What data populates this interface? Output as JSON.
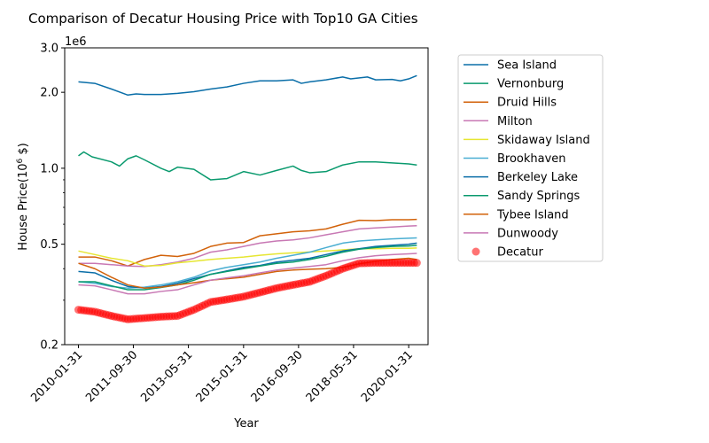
{
  "chart_data": {
    "type": "line",
    "title": "Comparison of Decatur Housing Price with Top10 GA Cities",
    "xlabel": "Year",
    "ylabel": "House Price(10",
    "ylabel_sup": "6",
    "ylabel_suffix": " $)",
    "y_offset_label": "1e6",
    "yscale": "log",
    "ylim": [
      0.2,
      3.0
    ],
    "xlim": [
      "2009-09-01",
      "2020-09-01"
    ],
    "yticks": [
      {
        "value": 0.2,
        "label": "0.2"
      },
      {
        "value": 0.5,
        "label": "0.5"
      },
      {
        "value": 1.0,
        "label": "1.0"
      },
      {
        "value": 2.0,
        "label": "2.0"
      },
      {
        "value": 3.0,
        "label": "3.0"
      }
    ],
    "xticks": [
      {
        "date": "2010-01-31",
        "label": "2010-01-31"
      },
      {
        "date": "2011-09-30",
        "label": "2011-09-30"
      },
      {
        "date": "2013-05-31",
        "label": "2013-05-31"
      },
      {
        "date": "2015-01-31",
        "label": "2015-01-31"
      },
      {
        "date": "2016-09-30",
        "label": "2016-09-30"
      },
      {
        "date": "2018-05-31",
        "label": "2018-05-31"
      },
      {
        "date": "2020-01-31",
        "label": "2020-01-31"
      }
    ],
    "grid": false,
    "legend_position": "outside-right",
    "series": [
      {
        "name": "Sea Island",
        "color": "#0a6ea8",
        "points": [
          [
            "2010-01-31",
            2.2
          ],
          [
            "2010-07-31",
            2.17
          ],
          [
            "2011-01-31",
            2.06
          ],
          [
            "2011-07-31",
            1.95
          ],
          [
            "2011-10-31",
            1.97
          ],
          [
            "2012-01-31",
            1.96
          ],
          [
            "2012-07-31",
            1.96
          ],
          [
            "2013-01-31",
            1.98
          ],
          [
            "2013-07-31",
            2.01
          ],
          [
            "2014-01-31",
            2.06
          ],
          [
            "2014-07-31",
            2.1
          ],
          [
            "2015-01-31",
            2.17
          ],
          [
            "2015-07-31",
            2.22
          ],
          [
            "2016-01-31",
            2.22
          ],
          [
            "2016-07-31",
            2.24
          ],
          [
            "2016-10-31",
            2.17
          ],
          [
            "2017-01-31",
            2.2
          ],
          [
            "2017-07-31",
            2.24
          ],
          [
            "2018-01-31",
            2.3
          ],
          [
            "2018-04-30",
            2.26
          ],
          [
            "2018-10-31",
            2.3
          ],
          [
            "2019-01-31",
            2.24
          ],
          [
            "2019-07-31",
            2.25
          ],
          [
            "2019-10-31",
            2.22
          ],
          [
            "2020-01-31",
            2.26
          ],
          [
            "2020-04-30",
            2.33
          ]
        ]
      },
      {
        "name": "Vernonburg",
        "color": "#0a9a6e",
        "points": [
          [
            "2010-01-31",
            1.12
          ],
          [
            "2010-03-31",
            1.16
          ],
          [
            "2010-06-30",
            1.11
          ],
          [
            "2011-01-31",
            1.06
          ],
          [
            "2011-04-30",
            1.02
          ],
          [
            "2011-07-31",
            1.09
          ],
          [
            "2011-10-31",
            1.12
          ],
          [
            "2012-01-31",
            1.08
          ],
          [
            "2012-07-31",
            1.0
          ],
          [
            "2012-10-31",
            0.97
          ],
          [
            "2013-01-31",
            1.01
          ],
          [
            "2013-07-31",
            0.99
          ],
          [
            "2014-01-31",
            0.9
          ],
          [
            "2014-07-31",
            0.91
          ],
          [
            "2015-01-31",
            0.97
          ],
          [
            "2015-07-31",
            0.94
          ],
          [
            "2016-01-31",
            0.98
          ],
          [
            "2016-07-31",
            1.02
          ],
          [
            "2016-10-31",
            0.98
          ],
          [
            "2017-01-31",
            0.96
          ],
          [
            "2017-07-31",
            0.97
          ],
          [
            "2018-01-31",
            1.03
          ],
          [
            "2018-07-31",
            1.06
          ],
          [
            "2019-01-31",
            1.06
          ],
          [
            "2019-07-31",
            1.05
          ],
          [
            "2020-01-31",
            1.04
          ],
          [
            "2020-04-30",
            1.03
          ]
        ]
      },
      {
        "name": "Druid Hills",
        "color": "#d2620a",
        "points": [
          [
            "2010-01-31",
            0.445
          ],
          [
            "2010-07-31",
            0.445
          ],
          [
            "2011-01-31",
            0.43
          ],
          [
            "2011-07-31",
            0.41
          ],
          [
            "2012-01-31",
            0.435
          ],
          [
            "2012-07-31",
            0.452
          ],
          [
            "2013-01-31",
            0.447
          ],
          [
            "2013-07-31",
            0.46
          ],
          [
            "2014-01-31",
            0.49
          ],
          [
            "2014-07-31",
            0.505
          ],
          [
            "2015-01-31",
            0.508
          ],
          [
            "2015-07-31",
            0.54
          ],
          [
            "2016-01-31",
            0.55
          ],
          [
            "2016-07-31",
            0.56
          ],
          [
            "2017-01-31",
            0.565
          ],
          [
            "2017-07-31",
            0.575
          ],
          [
            "2018-01-31",
            0.6
          ],
          [
            "2018-07-31",
            0.622
          ],
          [
            "2019-01-31",
            0.62
          ],
          [
            "2019-07-31",
            0.625
          ],
          [
            "2020-01-31",
            0.625
          ],
          [
            "2020-04-30",
            0.627
          ]
        ]
      },
      {
        "name": "Milton",
        "color": "#c878b4",
        "points": [
          [
            "2010-01-31",
            0.42
          ],
          [
            "2010-07-31",
            0.42
          ],
          [
            "2011-01-31",
            0.415
          ],
          [
            "2011-07-31",
            0.41
          ],
          [
            "2012-01-31",
            0.408
          ],
          [
            "2012-07-31",
            0.415
          ],
          [
            "2013-01-31",
            0.425
          ],
          [
            "2013-07-31",
            0.44
          ],
          [
            "2014-01-31",
            0.465
          ],
          [
            "2014-07-31",
            0.475
          ],
          [
            "2015-01-31",
            0.49
          ],
          [
            "2015-07-31",
            0.505
          ],
          [
            "2016-01-31",
            0.515
          ],
          [
            "2016-07-31",
            0.52
          ],
          [
            "2017-01-31",
            0.53
          ],
          [
            "2017-07-31",
            0.545
          ],
          [
            "2018-01-31",
            0.56
          ],
          [
            "2018-07-31",
            0.575
          ],
          [
            "2019-01-31",
            0.58
          ],
          [
            "2019-07-31",
            0.585
          ],
          [
            "2020-01-31",
            0.59
          ],
          [
            "2020-04-30",
            0.592
          ]
        ]
      },
      {
        "name": "Skidaway Island",
        "color": "#e6e632",
        "points": [
          [
            "2010-01-31",
            0.47
          ],
          [
            "2010-07-31",
            0.455
          ],
          [
            "2011-01-31",
            0.44
          ],
          [
            "2011-07-31",
            0.43
          ],
          [
            "2012-01-31",
            0.41
          ],
          [
            "2012-07-31",
            0.412
          ],
          [
            "2013-01-31",
            0.422
          ],
          [
            "2013-07-31",
            0.428
          ],
          [
            "2014-01-31",
            0.435
          ],
          [
            "2014-07-31",
            0.44
          ],
          [
            "2015-01-31",
            0.445
          ],
          [
            "2015-07-31",
            0.452
          ],
          [
            "2016-01-31",
            0.458
          ],
          [
            "2016-07-31",
            0.462
          ],
          [
            "2017-01-31",
            0.466
          ],
          [
            "2017-07-31",
            0.47
          ],
          [
            "2018-01-31",
            0.475
          ],
          [
            "2018-07-31",
            0.48
          ],
          [
            "2019-01-31",
            0.48
          ],
          [
            "2019-07-31",
            0.482
          ],
          [
            "2020-01-31",
            0.482
          ],
          [
            "2020-04-30",
            0.483
          ]
        ]
      },
      {
        "name": "Brookhaven",
        "color": "#4aaed2",
        "points": [
          [
            "2010-01-31",
            0.355
          ],
          [
            "2010-07-31",
            0.35
          ],
          [
            "2011-01-31",
            0.34
          ],
          [
            "2011-07-31",
            0.335
          ],
          [
            "2012-01-31",
            0.338
          ],
          [
            "2012-07-31",
            0.345
          ],
          [
            "2013-01-31",
            0.355
          ],
          [
            "2013-07-31",
            0.37
          ],
          [
            "2014-01-31",
            0.392
          ],
          [
            "2014-07-31",
            0.405
          ],
          [
            "2015-01-31",
            0.415
          ],
          [
            "2015-07-31",
            0.425
          ],
          [
            "2016-01-31",
            0.44
          ],
          [
            "2016-07-31",
            0.452
          ],
          [
            "2017-01-31",
            0.465
          ],
          [
            "2017-07-31",
            0.485
          ],
          [
            "2018-01-31",
            0.505
          ],
          [
            "2018-07-31",
            0.515
          ],
          [
            "2019-01-31",
            0.52
          ],
          [
            "2019-07-31",
            0.525
          ],
          [
            "2020-01-31",
            0.528
          ],
          [
            "2020-04-30",
            0.53
          ]
        ]
      },
      {
        "name": "Berkeley Lake",
        "color": "#0a6ea8",
        "points": [
          [
            "2010-01-31",
            0.39
          ],
          [
            "2010-07-31",
            0.385
          ],
          [
            "2011-01-31",
            0.36
          ],
          [
            "2011-07-31",
            0.34
          ],
          [
            "2012-01-31",
            0.335
          ],
          [
            "2012-07-31",
            0.34
          ],
          [
            "2013-01-31",
            0.35
          ],
          [
            "2013-07-31",
            0.365
          ],
          [
            "2014-01-31",
            0.38
          ],
          [
            "2014-07-31",
            0.392
          ],
          [
            "2015-01-31",
            0.405
          ],
          [
            "2015-07-31",
            0.412
          ],
          [
            "2016-01-31",
            0.425
          ],
          [
            "2016-07-31",
            0.432
          ],
          [
            "2017-01-31",
            0.44
          ],
          [
            "2017-07-31",
            0.455
          ],
          [
            "2018-01-31",
            0.47
          ],
          [
            "2018-07-31",
            0.48
          ],
          [
            "2019-01-31",
            0.49
          ],
          [
            "2019-07-31",
            0.495
          ],
          [
            "2020-01-31",
            0.5
          ],
          [
            "2020-04-30",
            0.505
          ]
        ]
      },
      {
        "name": "Sandy Springs",
        "color": "#0a9a6e",
        "points": [
          [
            "2010-01-31",
            0.355
          ],
          [
            "2010-07-31",
            0.355
          ],
          [
            "2011-01-31",
            0.342
          ],
          [
            "2011-07-31",
            0.33
          ],
          [
            "2012-01-31",
            0.33
          ],
          [
            "2012-07-31",
            0.337
          ],
          [
            "2013-01-31",
            0.345
          ],
          [
            "2013-07-31",
            0.36
          ],
          [
            "2014-01-31",
            0.38
          ],
          [
            "2014-07-31",
            0.39
          ],
          [
            "2015-01-31",
            0.4
          ],
          [
            "2015-07-31",
            0.41
          ],
          [
            "2016-01-31",
            0.42
          ],
          [
            "2016-07-31",
            0.425
          ],
          [
            "2017-01-31",
            0.435
          ],
          [
            "2017-07-31",
            0.448
          ],
          [
            "2018-01-31",
            0.465
          ],
          [
            "2018-07-31",
            0.478
          ],
          [
            "2019-01-31",
            0.485
          ],
          [
            "2019-07-31",
            0.49
          ],
          [
            "2020-01-31",
            0.492
          ],
          [
            "2020-04-30",
            0.495
          ]
        ]
      },
      {
        "name": "Tybee Island",
        "color": "#d2620a",
        "points": [
          [
            "2010-01-31",
            0.42
          ],
          [
            "2010-07-31",
            0.4
          ],
          [
            "2011-01-31",
            0.37
          ],
          [
            "2011-07-31",
            0.345
          ],
          [
            "2012-01-31",
            0.335
          ],
          [
            "2012-07-31",
            0.338
          ],
          [
            "2013-01-31",
            0.345
          ],
          [
            "2013-07-31",
            0.352
          ],
          [
            "2014-01-31",
            0.36
          ],
          [
            "2014-07-31",
            0.365
          ],
          [
            "2015-01-31",
            0.37
          ],
          [
            "2015-07-31",
            0.38
          ],
          [
            "2016-01-31",
            0.39
          ],
          [
            "2016-07-31",
            0.395
          ],
          [
            "2017-01-31",
            0.398
          ],
          [
            "2017-07-31",
            0.4
          ],
          [
            "2018-01-31",
            0.405
          ],
          [
            "2018-07-31",
            0.418
          ],
          [
            "2019-01-31",
            0.428
          ],
          [
            "2019-07-31",
            0.435
          ],
          [
            "2020-01-31",
            0.44
          ],
          [
            "2020-04-30",
            0.435
          ]
        ]
      },
      {
        "name": "Dunwoody",
        "color": "#c878b4",
        "points": [
          [
            "2010-01-31",
            0.345
          ],
          [
            "2010-07-31",
            0.342
          ],
          [
            "2011-01-31",
            0.33
          ],
          [
            "2011-07-31",
            0.318
          ],
          [
            "2012-01-31",
            0.318
          ],
          [
            "2012-07-31",
            0.325
          ],
          [
            "2013-01-31",
            0.33
          ],
          [
            "2013-07-31",
            0.345
          ],
          [
            "2014-01-31",
            0.36
          ],
          [
            "2014-07-31",
            0.368
          ],
          [
            "2015-01-31",
            0.375
          ],
          [
            "2015-07-31",
            0.385
          ],
          [
            "2016-01-31",
            0.395
          ],
          [
            "2016-07-31",
            0.402
          ],
          [
            "2017-01-31",
            0.408
          ],
          [
            "2017-07-31",
            0.415
          ],
          [
            "2018-01-31",
            0.43
          ],
          [
            "2018-07-31",
            0.442
          ],
          [
            "2019-01-31",
            0.45
          ],
          [
            "2019-07-31",
            0.455
          ],
          [
            "2020-01-31",
            0.458
          ],
          [
            "2020-04-30",
            0.46
          ]
        ]
      },
      {
        "name": "Decatur",
        "color": "#ff0000",
        "marker": "circle",
        "points": [
          [
            "2010-01-31",
            0.275
          ],
          [
            "2010-07-31",
            0.27
          ],
          [
            "2011-01-31",
            0.26
          ],
          [
            "2011-07-31",
            0.252
          ],
          [
            "2012-01-31",
            0.255
          ],
          [
            "2012-07-31",
            0.258
          ],
          [
            "2013-01-31",
            0.26
          ],
          [
            "2013-07-31",
            0.275
          ],
          [
            "2014-01-31",
            0.295
          ],
          [
            "2014-07-31",
            0.302
          ],
          [
            "2015-01-31",
            0.31
          ],
          [
            "2015-07-31",
            0.322
          ],
          [
            "2016-01-31",
            0.335
          ],
          [
            "2016-07-31",
            0.345
          ],
          [
            "2017-01-31",
            0.355
          ],
          [
            "2017-07-31",
            0.375
          ],
          [
            "2018-01-31",
            0.4
          ],
          [
            "2018-07-31",
            0.42
          ],
          [
            "2019-01-31",
            0.422
          ],
          [
            "2019-07-31",
            0.422
          ],
          [
            "2020-01-31",
            0.422
          ],
          [
            "2020-04-30",
            0.422
          ]
        ]
      }
    ]
  }
}
